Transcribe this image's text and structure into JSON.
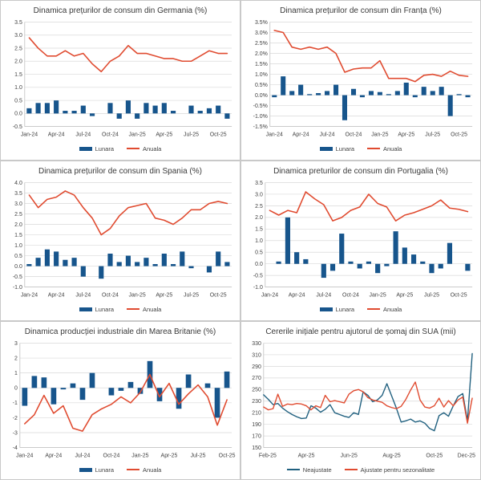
{
  "colors": {
    "bar_blue": "#17558C",
    "line_red": "#E04B30",
    "line_blue": "#20607F",
    "grid": "#D9D9D9",
    "axis": "#BFBFBF",
    "text": "#404040",
    "title": "#3A3A3A"
  },
  "chart_data": [
    {
      "id": "germania",
      "type": "bar-line",
      "title": "Dinamica prețurilor de consum din Germania (%)",
      "categories": [
        "Jan-24",
        "Feb-24",
        "Mar-24",
        "Apr-24",
        "May-24",
        "Jun-24",
        "Jul-24",
        "Aug-24",
        "Sep-24",
        "Oct-24",
        "Nov-24",
        "Dec-24",
        "Jan-25",
        "Feb-25",
        "Mar-25",
        "Apr-25",
        "May-25",
        "Jun-25",
        "Jul-25",
        "Aug-25",
        "Sep-25",
        "Oct-25",
        "Nov-25"
      ],
      "xticks": {
        "labels": [
          "Jan-24",
          "Apr-24",
          "Jul-24",
          "Oct-24",
          "Jan-25",
          "Apr-25",
          "Jul-25",
          "Oct-25"
        ],
        "indices": [
          0,
          3,
          6,
          9,
          12,
          15,
          18,
          21
        ]
      },
      "ylim": [
        -0.5,
        3.5
      ],
      "ystep": 0.5,
      "ydec": 1,
      "ysuffix": "",
      "ml": 30,
      "grid": true,
      "legend_position": "bottom",
      "series": [
        {
          "name": "Lunara",
          "type": "bar",
          "color": "#17558C",
          "values": [
            0.2,
            0.4,
            0.4,
            0.5,
            0.1,
            0.1,
            0.3,
            -0.1,
            0.0,
            0.4,
            -0.2,
            0.5,
            -0.2,
            0.4,
            0.3,
            0.4,
            0.1,
            0.0,
            0.3,
            0.1,
            0.2,
            0.3,
            -0.2
          ]
        },
        {
          "name": "Anuala",
          "type": "line",
          "color": "#E04B30",
          "values": [
            2.9,
            2.5,
            2.2,
            2.2,
            2.4,
            2.2,
            2.3,
            1.9,
            1.6,
            2.0,
            2.2,
            2.6,
            2.3,
            2.3,
            2.2,
            2.1,
            2.1,
            2.0,
            2.0,
            2.2,
            2.4,
            2.3,
            2.3
          ]
        }
      ]
    },
    {
      "id": "franta",
      "type": "bar-line",
      "title": "Dinamica prețurilor de consum din Franța (%)",
      "categories": [
        "Jan-24",
        "Feb-24",
        "Mar-24",
        "Apr-24",
        "May-24",
        "Jun-24",
        "Jul-24",
        "Aug-24",
        "Sep-24",
        "Oct-24",
        "Nov-24",
        "Dec-24",
        "Jan-25",
        "Feb-25",
        "Mar-25",
        "Apr-25",
        "May-25",
        "Jun-25",
        "Jul-25",
        "Aug-25",
        "Sep-25",
        "Oct-25",
        "Nov-25"
      ],
      "xticks": {
        "labels": [
          "Jan-24",
          "Apr-24",
          "Jul-24",
          "Oct-24",
          "Jan-25",
          "Apr-25",
          "Jul-25",
          "Oct-25"
        ],
        "indices": [
          0,
          3,
          6,
          9,
          12,
          15,
          18,
          21
        ]
      },
      "ylim": [
        -1.5,
        3.5
      ],
      "ystep": 0.5,
      "ydec": 1,
      "ysuffix": "%",
      "ml": 36,
      "grid": true,
      "legend_position": "bottom",
      "series": [
        {
          "name": "Lunara",
          "type": "bar",
          "color": "#17558C",
          "values": [
            -0.1,
            0.9,
            0.2,
            0.5,
            0.05,
            0.1,
            0.2,
            0.5,
            -1.2,
            0.3,
            -0.1,
            0.2,
            0.15,
            0.05,
            0.2,
            0.6,
            -0.1,
            0.4,
            0.2,
            0.4,
            -1.0,
            0.05,
            -0.1
          ]
        },
        {
          "name": "Anuala",
          "type": "line",
          "color": "#E04B30",
          "values": [
            3.1,
            3.0,
            2.3,
            2.2,
            2.3,
            2.2,
            2.3,
            2.0,
            1.1,
            1.25,
            1.3,
            1.3,
            1.65,
            0.8,
            0.8,
            0.8,
            0.65,
            0.95,
            1.0,
            0.9,
            1.15,
            0.95,
            0.9
          ]
        }
      ]
    },
    {
      "id": "spania",
      "type": "bar-line",
      "title": "Dinamica prețurilor de consum din Spania (%)",
      "categories": [
        "Jan-24",
        "Feb-24",
        "Mar-24",
        "Apr-24",
        "May-24",
        "Jun-24",
        "Jul-24",
        "Aug-24",
        "Sep-24",
        "Oct-24",
        "Nov-24",
        "Dec-24",
        "Jan-25",
        "Feb-25",
        "Mar-25",
        "Apr-25",
        "May-25",
        "Jun-25",
        "Jul-25",
        "Aug-25",
        "Sep-25",
        "Oct-25",
        "Nov-25"
      ],
      "xticks": {
        "labels": [
          "Jan-24",
          "Apr-24",
          "Jul-24",
          "Oct-24",
          "Jan-25",
          "Apr-25",
          "Jul-25",
          "Oct-25"
        ],
        "indices": [
          0,
          3,
          6,
          9,
          12,
          15,
          18,
          21
        ]
      },
      "ylim": [
        -1.0,
        4.0
      ],
      "ystep": 0.5,
      "ydec": 1,
      "ysuffix": "",
      "ml": 30,
      "grid": true,
      "legend_position": "bottom",
      "series": [
        {
          "name": "Lunara",
          "type": "bar",
          "color": "#17558C",
          "values": [
            0.1,
            0.4,
            0.8,
            0.7,
            0.3,
            0.4,
            -0.5,
            0.0,
            -0.6,
            0.6,
            0.2,
            0.5,
            0.2,
            0.4,
            0.1,
            0.6,
            0.1,
            0.7,
            -0.1,
            0.0,
            -0.3,
            0.7,
            0.2
          ]
        },
        {
          "name": "Anuala",
          "type": "line",
          "color": "#E04B30",
          "values": [
            3.4,
            2.8,
            3.2,
            3.3,
            3.6,
            3.4,
            2.8,
            2.3,
            1.5,
            1.8,
            2.4,
            2.8,
            2.9,
            3.0,
            2.3,
            2.2,
            2.0,
            2.3,
            2.7,
            2.7,
            3.0,
            3.1,
            3.0
          ]
        }
      ]
    },
    {
      "id": "portugalia",
      "type": "bar-line",
      "title": "Dinamica preturilor de consum din Portugalia (%)",
      "categories": [
        "Jan-24",
        "Feb-24",
        "Mar-24",
        "Apr-24",
        "May-24",
        "Jun-24",
        "Jul-24",
        "Aug-24",
        "Sep-24",
        "Oct-24",
        "Nov-24",
        "Dec-24",
        "Jan-25",
        "Feb-25",
        "Mar-25",
        "Apr-25",
        "May-25",
        "Jun-25",
        "Jul-25",
        "Aug-25",
        "Sep-25",
        "Oct-25",
        "Nov-25"
      ],
      "xticks": {
        "labels": [
          "Jan-24",
          "Apr-24",
          "Jul-24",
          "Oct-24",
          "Jan-25",
          "Apr-25",
          "Jul-25",
          "Oct-25"
        ],
        "indices": [
          0,
          3,
          6,
          9,
          12,
          15,
          18,
          21
        ]
      },
      "ylim": [
        -1.0,
        3.5
      ],
      "ystep": 0.5,
      "ydec": 1,
      "ysuffix": "",
      "ml": 30,
      "grid": true,
      "legend_position": "bottom",
      "series": [
        {
          "name": "Lunara",
          "type": "bar",
          "color": "#17558C",
          "values": [
            0.0,
            0.1,
            2.0,
            0.5,
            0.2,
            0.0,
            -0.6,
            -0.3,
            1.3,
            0.1,
            -0.2,
            0.1,
            -0.4,
            -0.1,
            1.4,
            0.7,
            0.4,
            0.1,
            -0.4,
            -0.2,
            0.9,
            0.0,
            -0.3
          ]
        },
        {
          "name": "Anuala",
          "type": "line",
          "color": "#E04B30",
          "values": [
            2.3,
            2.1,
            2.3,
            2.2,
            3.1,
            2.8,
            2.55,
            1.85,
            2.0,
            2.3,
            2.45,
            3.0,
            2.6,
            2.45,
            1.85,
            2.1,
            2.2,
            2.35,
            2.5,
            2.75,
            2.4,
            2.35,
            2.25
          ]
        }
      ]
    },
    {
      "id": "marea-britanie",
      "type": "bar-line",
      "title": "Dinamica producției industriale din Marea Britanie (%)",
      "categories": [
        "Jan-24",
        "Feb-24",
        "Mar-24",
        "Apr-24",
        "May-24",
        "Jun-24",
        "Jul-24",
        "Aug-24",
        "Sep-24",
        "Oct-24",
        "Nov-24",
        "Dec-24",
        "Jan-25",
        "Feb-25",
        "Mar-25",
        "Apr-25",
        "May-25",
        "Jun-25",
        "Jul-25",
        "Aug-25",
        "Sep-25",
        "Oct-25"
      ],
      "xticks": {
        "labels": [
          "Jan-24",
          "Apr-24",
          "Jul-24",
          "Oct-24",
          "Jan-25",
          "Apr-25",
          "Jul-25",
          "Oct-25"
        ],
        "indices": [
          0,
          3,
          6,
          9,
          12,
          15,
          18,
          21
        ]
      },
      "ylim": [
        -4,
        3
      ],
      "ystep": 1,
      "ydec": 0,
      "ysuffix": "",
      "ml": 24,
      "grid": true,
      "legend_position": "bottom",
      "series": [
        {
          "name": "Lunara",
          "type": "bar",
          "color": "#17558C",
          "values": [
            -1.2,
            0.8,
            0.7,
            -1.1,
            -0.1,
            0.3,
            -0.8,
            1.0,
            0.0,
            -0.5,
            -0.2,
            0.4,
            -0.4,
            1.8,
            -0.9,
            0.0,
            -1.4,
            0.9,
            0.0,
            0.3,
            -2.0,
            1.1
          ]
        },
        {
          "name": "Anuala",
          "type": "line",
          "color": "#E04B30",
          "values": [
            -2.4,
            -1.8,
            -0.5,
            -1.7,
            -1.2,
            -2.7,
            -2.9,
            -1.8,
            -1.4,
            -1.1,
            -0.6,
            -1.0,
            -0.3,
            0.9,
            -0.6,
            0.3,
            -1.1,
            -0.4,
            0.2,
            -0.6,
            -2.5,
            -0.8
          ]
        }
      ]
    },
    {
      "id": "sua",
      "type": "line",
      "title": "Cererile inițiale pentru ajutorul de șomaj din SUA (mii)",
      "x_unit": "week",
      "xticks": {
        "labels": [
          "Feb-25",
          "Apr-25",
          "Jun-25",
          "Aug-25",
          "Oct-25",
          "Dec-25"
        ],
        "indices": [
          0,
          9,
          18,
          27,
          36,
          44
        ]
      },
      "ylim": [
        150,
        330
      ],
      "ystep": 20,
      "ydec": 0,
      "ysuffix": "",
      "ml": 28,
      "grid": true,
      "legend_position": "bottom",
      "series": [
        {
          "name": "Neajustate",
          "type": "line",
          "color": "#20607F",
          "values": [
            241,
            233,
            224,
            226,
            218,
            212,
            207,
            203,
            200,
            201,
            222,
            218,
            211,
            216,
            224,
            210,
            207,
            204,
            202,
            210,
            207,
            246,
            240,
            229,
            232,
            240,
            260,
            239,
            218,
            194,
            196,
            199,
            194,
            196,
            192,
            183,
            179,
            205,
            210,
            204,
            222,
            238,
            243,
            196,
            312
          ]
        },
        {
          "name": "Ajustate pentru sezonalitate",
          "type": "line",
          "color": "#E04B30",
          "values": [
            220,
            215,
            217,
            242,
            221,
            225,
            224,
            226,
            225,
            222,
            215,
            222,
            219,
            240,
            229,
            231,
            229,
            227,
            242,
            248,
            250,
            246,
            236,
            232,
            230,
            228,
            222,
            219,
            217,
            221,
            233,
            249,
            263,
            232,
            220,
            218,
            222,
            235,
            220,
            231,
            222,
            232,
            237,
            192,
            235
          ]
        }
      ]
    }
  ]
}
